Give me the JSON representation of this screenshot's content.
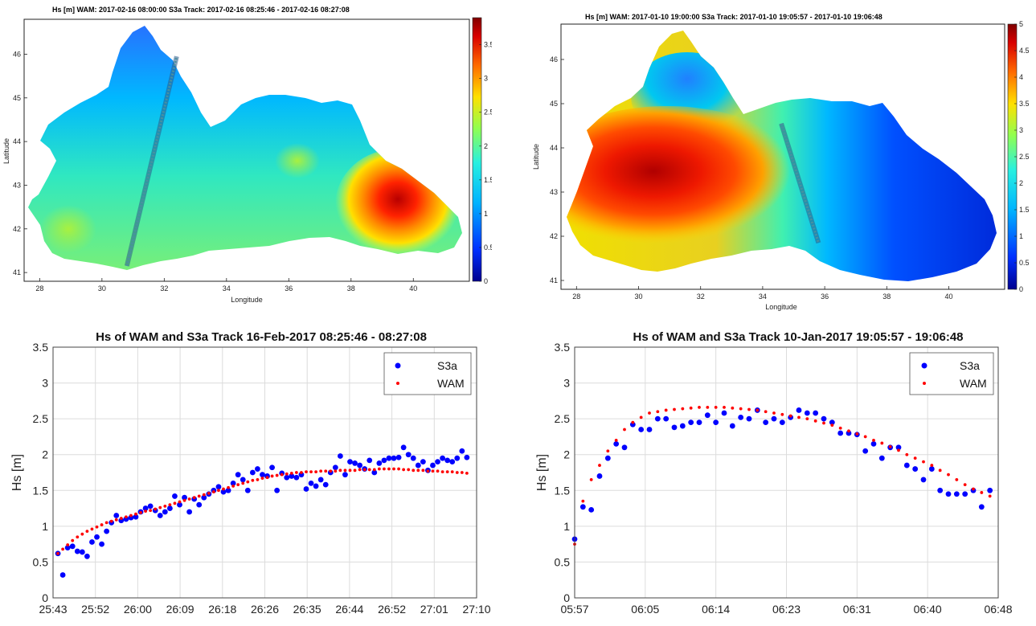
{
  "chart_data": [
    {
      "type": "heatmap",
      "title": "Hs [m]    WAM: 2017-02-16 08:00:00      S3a Track: 2017-02-16 08:25:46 - 2017-02-16 08:27:08",
      "xlabel": "Longitude",
      "ylabel": "Latitude",
      "xlim": [
        27.5,
        41.8
      ],
      "ylim": [
        40.8,
        46.8
      ],
      "xticks": [
        28,
        30,
        32,
        34,
        36,
        38,
        40
      ],
      "yticks": [
        41,
        42,
        43,
        44,
        45,
        46
      ],
      "colorbar": {
        "range": [
          0,
          3.9
        ],
        "ticks": [
          0,
          0.5,
          1,
          1.5,
          2,
          2.5,
          3,
          3.5
        ]
      },
      "colormap": [
        "#00008f",
        "#0050ff",
        "#00c8ff",
        "#3cffc8",
        "#b4ff3c",
        "#ffdc00",
        "#ff6400",
        "#d20000",
        "#800000"
      ],
      "track": {
        "start": [
          30.8,
          41.15
        ],
        "end": [
          32.4,
          45.95
        ]
      }
    },
    {
      "type": "heatmap",
      "title": "Hs [m]    WAM: 2017-01-10 19:00:00      S3a Track: 2017-01-10 19:05:57 - 2017-01-10 19:06:48",
      "xlabel": "Longitude",
      "ylabel": "Latitude",
      "xlim": [
        27.5,
        41.8
      ],
      "ylim": [
        40.8,
        46.8
      ],
      "xticks": [
        28,
        30,
        32,
        34,
        36,
        38,
        40
      ],
      "yticks": [
        41,
        42,
        43,
        44,
        45,
        46
      ],
      "colorbar": {
        "range": [
          0,
          5
        ],
        "ticks": [
          0,
          0.5,
          1,
          1.5,
          2,
          2.5,
          3,
          3.5,
          4,
          4.5,
          5
        ]
      },
      "colormap": [
        "#00008f",
        "#0050ff",
        "#00c8ff",
        "#3cffc8",
        "#b4ff3c",
        "#ffdc00",
        "#ff6400",
        "#d20000",
        "#800000"
      ],
      "track": {
        "start": [
          34.6,
          44.55
        ],
        "end": [
          35.8,
          41.85
        ]
      }
    },
    {
      "type": "scatter",
      "title": "Hs of WAM and S3a Track 16-Feb-2017 08:25:46 - 08:27:08",
      "xlabel": "",
      "ylabel": "Hs [m]",
      "xlim": [
        0,
        87
      ],
      "ylim": [
        0,
        3.5
      ],
      "xticks": [
        "25:43",
        "25:52",
        "26:00",
        "26:09",
        "26:18",
        "26:26",
        "26:35",
        "26:44",
        "26:52",
        "27:01",
        "27:10"
      ],
      "xtick_values": [
        0,
        8.7,
        17.4,
        26.1,
        34.8,
        43.5,
        52.2,
        60.9,
        69.6,
        78.3,
        87
      ],
      "yticks": [
        0,
        0.5,
        1,
        1.5,
        2,
        2.5,
        3,
        3.5
      ],
      "grid": true,
      "legend_position": "top-right",
      "series": [
        {
          "name": "S3a",
          "color": "#0000ff",
          "marker": "dot",
          "x": [
            1,
            2,
            3,
            4,
            5,
            6,
            7,
            8,
            9,
            10,
            11,
            12,
            13,
            14,
            15,
            16,
            17,
            18,
            19,
            20,
            21,
            22,
            23,
            24,
            25,
            26,
            27,
            28,
            29,
            30,
            31,
            32,
            33,
            34,
            35,
            36,
            37,
            38,
            39,
            40,
            41,
            42,
            43,
            44,
            45,
            46,
            47,
            48,
            49,
            50,
            51,
            52,
            53,
            54,
            55,
            56,
            57,
            58,
            59,
            60,
            61,
            62,
            63,
            64,
            65,
            66,
            67,
            68,
            69,
            70,
            71,
            72,
            73,
            74,
            75,
            76,
            77,
            78,
            79,
            80,
            81,
            82,
            83,
            84,
            85
          ],
          "y": [
            0.62,
            0.32,
            0.7,
            0.72,
            0.65,
            0.64,
            0.58,
            0.78,
            0.85,
            0.75,
            0.93,
            1.05,
            1.15,
            1.08,
            1.1,
            1.12,
            1.13,
            1.2,
            1.25,
            1.28,
            1.22,
            1.15,
            1.2,
            1.25,
            1.42,
            1.3,
            1.4,
            1.2,
            1.38,
            1.3,
            1.4,
            1.45,
            1.5,
            1.55,
            1.48,
            1.5,
            1.6,
            1.72,
            1.65,
            1.5,
            1.75,
            1.8,
            1.72,
            1.7,
            1.82,
            1.5,
            1.74,
            1.68,
            1.7,
            1.68,
            1.72,
            1.52,
            1.6,
            1.56,
            1.65,
            1.58,
            1.75,
            1.82,
            1.98,
            1.72,
            1.9,
            1.88,
            1.85,
            1.8,
            1.92,
            1.75,
            1.88,
            1.92,
            1.95,
            1.95,
            1.96,
            2.1,
            2.0,
            1.95,
            1.85,
            1.9,
            1.78,
            1.85,
            1.9,
            1.95,
            1.92,
            1.9,
            1.95,
            2.05,
            1.96
          ]
        },
        {
          "name": "WAM",
          "color": "#ff0000",
          "marker": "small-dot",
          "x": [
            1,
            2,
            3,
            4,
            5,
            6,
            7,
            8,
            9,
            10,
            11,
            12,
            13,
            14,
            15,
            16,
            17,
            18,
            19,
            20,
            21,
            22,
            23,
            24,
            25,
            26,
            27,
            28,
            29,
            30,
            31,
            32,
            33,
            34,
            35,
            36,
            37,
            38,
            39,
            40,
            41,
            42,
            43,
            44,
            45,
            46,
            47,
            48,
            49,
            50,
            51,
            52,
            53,
            54,
            55,
            56,
            57,
            58,
            59,
            60,
            61,
            62,
            63,
            64,
            65,
            66,
            67,
            68,
            69,
            70,
            71,
            72,
            73,
            74,
            75,
            76,
            77,
            78,
            79,
            80,
            81,
            82,
            83,
            84,
            85
          ],
          "y": [
            0.62,
            0.68,
            0.74,
            0.8,
            0.85,
            0.89,
            0.93,
            0.96,
            0.99,
            1.02,
            1.05,
            1.07,
            1.09,
            1.11,
            1.13,
            1.15,
            1.17,
            1.19,
            1.21,
            1.22,
            1.24,
            1.26,
            1.28,
            1.3,
            1.32,
            1.34,
            1.36,
            1.38,
            1.4,
            1.42,
            1.44,
            1.46,
            1.48,
            1.5,
            1.52,
            1.54,
            1.56,
            1.58,
            1.6,
            1.62,
            1.64,
            1.65,
            1.67,
            1.68,
            1.7,
            1.71,
            1.72,
            1.73,
            1.74,
            1.75,
            1.75,
            1.76,
            1.76,
            1.76,
            1.77,
            1.77,
            1.77,
            1.77,
            1.78,
            1.78,
            1.78,
            1.78,
            1.79,
            1.79,
            1.79,
            1.79,
            1.8,
            1.8,
            1.8,
            1.8,
            1.8,
            1.79,
            1.79,
            1.78,
            1.78,
            1.78,
            1.77,
            1.77,
            1.77,
            1.76,
            1.76,
            1.76,
            1.75,
            1.75,
            1.74
          ]
        }
      ]
    },
    {
      "type": "scatter",
      "title": "Hs of WAM and S3a Track 10-Jan-2017 19:05:57 - 19:06:48",
      "xlabel": "",
      "ylabel": "Hs [m]",
      "xlim": [
        0,
        51
      ],
      "ylim": [
        0,
        3.5
      ],
      "xticks": [
        "05:57",
        "06:05",
        "06:14",
        "06:23",
        "06:31",
        "06:40",
        "06:48"
      ],
      "xtick_values": [
        0,
        8.5,
        17,
        25.5,
        34,
        42.5,
        51
      ],
      "yticks": [
        0,
        0.5,
        1,
        1.5,
        2,
        2.5,
        3,
        3.5
      ],
      "grid": true,
      "legend_position": "top-right",
      "series": [
        {
          "name": "S3a",
          "color": "#0000ff",
          "marker": "dot",
          "x": [
            0,
            1,
            2,
            3,
            4,
            5,
            6,
            7,
            8,
            9,
            10,
            11,
            12,
            13,
            14,
            15,
            16,
            17,
            18,
            19,
            20,
            21,
            22,
            23,
            24,
            25,
            26,
            27,
            28,
            29,
            30,
            31,
            32,
            33,
            34,
            35,
            36,
            37,
            38,
            39,
            40,
            41,
            42,
            43,
            44,
            45,
            46,
            47,
            48,
            49,
            50
          ],
          "y": [
            0.82,
            1.27,
            1.23,
            1.7,
            1.95,
            2.15,
            2.1,
            2.42,
            2.35,
            2.35,
            2.5,
            2.5,
            2.38,
            2.4,
            2.45,
            2.45,
            2.55,
            2.45,
            2.58,
            2.4,
            2.52,
            2.5,
            2.62,
            2.45,
            2.5,
            2.45,
            2.52,
            2.62,
            2.58,
            2.58,
            2.5,
            2.45,
            2.3,
            2.3,
            2.28,
            2.05,
            2.15,
            1.95,
            2.1,
            2.1,
            1.85,
            1.8,
            1.65,
            1.8,
            1.5,
            1.45,
            1.45,
            1.45,
            1.5,
            1.27,
            1.5
          ]
        },
        {
          "name": "WAM",
          "color": "#ff0000",
          "marker": "small-dot",
          "x": [
            0,
            1,
            2,
            3,
            4,
            5,
            6,
            7,
            8,
            9,
            10,
            11,
            12,
            13,
            14,
            15,
            16,
            17,
            18,
            19,
            20,
            21,
            22,
            23,
            24,
            25,
            26,
            27,
            28,
            29,
            30,
            31,
            32,
            33,
            34,
            35,
            36,
            37,
            38,
            39,
            40,
            41,
            42,
            43,
            44,
            45,
            46,
            47,
            48,
            49,
            50
          ],
          "y": [
            0.75,
            1.35,
            1.65,
            1.85,
            2.05,
            2.2,
            2.35,
            2.45,
            2.52,
            2.58,
            2.6,
            2.62,
            2.63,
            2.64,
            2.65,
            2.66,
            2.66,
            2.66,
            2.66,
            2.65,
            2.64,
            2.63,
            2.62,
            2.6,
            2.58,
            2.56,
            2.54,
            2.52,
            2.5,
            2.47,
            2.44,
            2.41,
            2.37,
            2.33,
            2.29,
            2.25,
            2.2,
            2.16,
            2.11,
            2.06,
            2.0,
            1.95,
            1.9,
            1.85,
            1.78,
            1.72,
            1.65,
            1.58,
            1.52,
            1.47,
            1.42
          ]
        }
      ]
    }
  ]
}
